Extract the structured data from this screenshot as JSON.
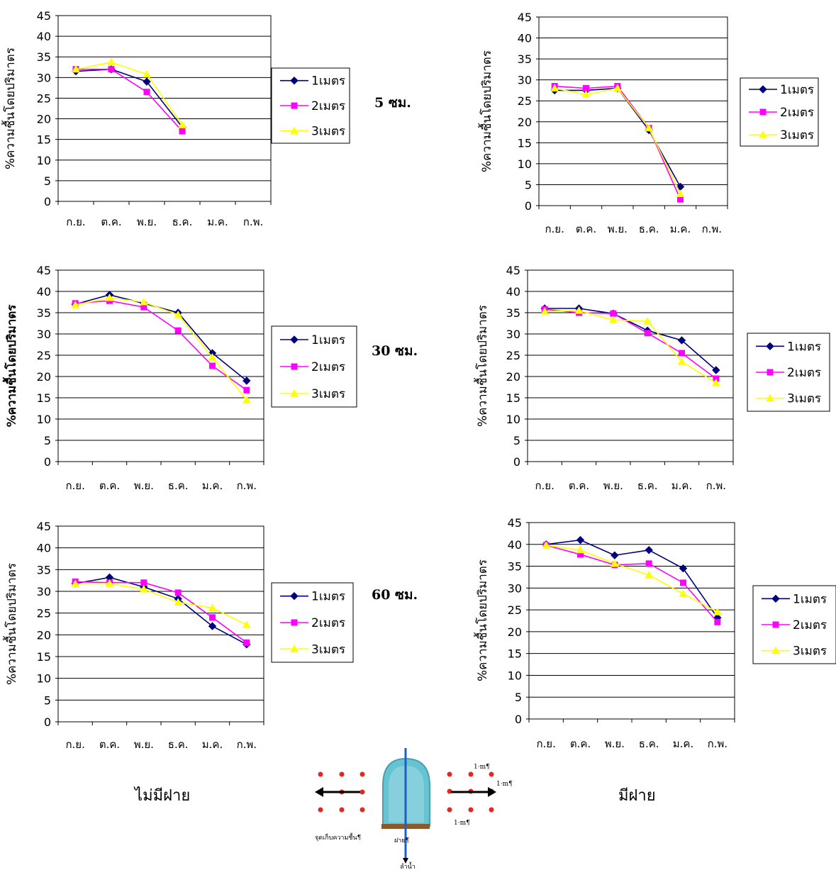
{
  "colors": {
    "1m": "#00007f",
    "2m": "#ff00ff",
    "3m": "#ffff00"
  },
  "depth_labels": {
    "d5": "5 ซม.",
    "d30": "30 ซม.",
    "d60": "60 ซม."
  },
  "condition_labels": {
    "left": "ไม่มีฝาย",
    "right": "มีฝาย"
  },
  "diagram": {
    "dist_top": "1·m¶",
    "dist_mid": "1·m¶",
    "dist_bottom": "1·m¶",
    "collect_label": "จุดเก็บความชื้น¶",
    "weir_label": "ฝาย¶",
    "stream_label": "ลำน้ำ"
  },
  "chart_data": [
    {
      "type": "line",
      "ylabel": "%ความชื้นโดยปริมาตร",
      "categories": [
        "ก.ย.",
        "ต.ค.",
        "พ.ย.",
        "ธ.ค.",
        "ม.ค.",
        "ก.พ."
      ],
      "ylim": [
        0,
        45
      ],
      "yticks": [
        0,
        5,
        10,
        15,
        20,
        25,
        30,
        35,
        40,
        45
      ],
      "series": [
        {
          "name": "1เมตร",
          "values": [
            31.5,
            32,
            29,
            18,
            null,
            null
          ]
        },
        {
          "name": "2เมตร",
          "values": [
            32,
            32,
            26.5,
            17,
            null,
            null
          ]
        },
        {
          "name": "3เมตร",
          "values": [
            32,
            33.7,
            30.8,
            18.5,
            null,
            null
          ]
        }
      ]
    },
    {
      "type": "line",
      "ylabel": "%ความชื้นโดยปริมาตร",
      "categories": [
        "ก.ย.",
        "ต.ค.",
        "พ.ย.",
        "ธ.ค.",
        "ม.ค.",
        "ก.พ."
      ],
      "ylim": [
        0,
        45
      ],
      "yticks": [
        0,
        5,
        10,
        15,
        20,
        25,
        30,
        35,
        40,
        45
      ],
      "series": [
        {
          "name": "1เมตร",
          "values": [
            27.5,
            27.5,
            28,
            18,
            4.5,
            null
          ]
        },
        {
          "name": "2เมตร",
          "values": [
            28.5,
            28,
            28.5,
            18.5,
            1.5,
            null
          ]
        },
        {
          "name": "3เมตร",
          "values": [
            28,
            26.5,
            28,
            18.5,
            2.8,
            null
          ]
        }
      ]
    },
    {
      "type": "line",
      "ylabel": "%ความชื้นโดยปริมาตร",
      "categories": [
        "ก.ย.",
        "ต.ค.",
        "พ.ย.",
        "ธ.ค.",
        "ม.ค.",
        "ก.พ."
      ],
      "ylim": [
        0,
        45
      ],
      "yticks": [
        0,
        5,
        10,
        15,
        20,
        25,
        30,
        35,
        40,
        45
      ],
      "series": [
        {
          "name": "1เมตร",
          "values": [
            37,
            39.2,
            37.2,
            35,
            25.5,
            19
          ]
        },
        {
          "name": "2เมตร",
          "values": [
            37.2,
            37.8,
            36.3,
            30.8,
            22.5,
            16.8
          ]
        },
        {
          "name": "3เมตร",
          "values": [
            36.8,
            38.5,
            37.5,
            34.5,
            24.5,
            14.5
          ]
        }
      ]
    },
    {
      "type": "line",
      "ylabel": "%ความชื้นโดยปริมาตร",
      "categories": [
        "ก.ย.",
        "ต.ค.",
        "พ.ย.",
        "ธ.ค.",
        "ม.ค.",
        "ก.พ."
      ],
      "ylim": [
        0,
        45
      ],
      "yticks": [
        0,
        5,
        10,
        15,
        20,
        25,
        30,
        35,
        40,
        45
      ],
      "series": [
        {
          "name": "1เมตร",
          "values": [
            36,
            36,
            34.8,
            30.8,
            28.5,
            21.5
          ]
        },
        {
          "name": "2เมตร",
          "values": [
            35.8,
            35,
            34.8,
            30.2,
            25.5,
            19.5
          ]
        },
        {
          "name": "3เมตร",
          "values": [
            35.3,
            35.5,
            33.3,
            33,
            23.5,
            18.5
          ]
        }
      ]
    },
    {
      "type": "line",
      "ylabel": "%ความชื้นโดยปริมาตร",
      "categories": [
        "ก.ย.",
        "ต.ค.",
        "พ.ย.",
        "ธ.ค.",
        "ม.ค.",
        "ก.พ."
      ],
      "ylim": [
        0,
        45
      ],
      "yticks": [
        0,
        5,
        10,
        15,
        20,
        25,
        30,
        35,
        40,
        45
      ],
      "series": [
        {
          "name": "1เมตร",
          "values": [
            31.8,
            33.2,
            31,
            28.3,
            22,
            17.8
          ]
        },
        {
          "name": "2เมตร",
          "values": [
            32.2,
            32,
            32,
            29.7,
            24,
            18.2
          ]
        },
        {
          "name": "3เมตร",
          "values": [
            31.7,
            31.8,
            30.5,
            27.5,
            26.2,
            22.3
          ]
        }
      ]
    },
    {
      "type": "line",
      "ylabel": "%ความชื้นโดยปริมาตร",
      "categories": [
        "ก.ย.",
        "ต.ค.",
        "พ.ย.",
        "ธ.ค.",
        "ม.ค.",
        "ก.พ."
      ],
      "ylim": [
        0,
        45
      ],
      "yticks": [
        0,
        5,
        10,
        15,
        20,
        25,
        30,
        35,
        40,
        45
      ],
      "series": [
        {
          "name": "1เมตร",
          "values": [
            40,
            41,
            37.5,
            38.7,
            34.5,
            23.2
          ]
        },
        {
          "name": "2เมตร",
          "values": [
            39.8,
            37.7,
            35.3,
            35.6,
            31.2,
            22.2
          ]
        },
        {
          "name": "3เมตร",
          "values": [
            39.8,
            38.7,
            35.6,
            33,
            28.7,
            24.5
          ]
        }
      ]
    }
  ]
}
